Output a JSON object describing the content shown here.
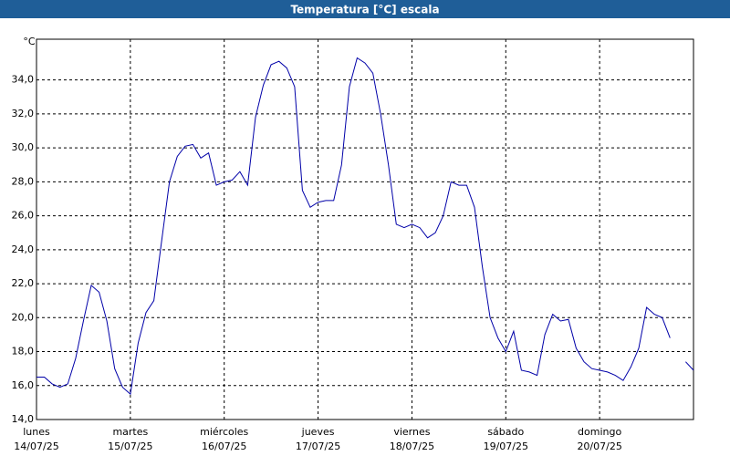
{
  "chart_data": {
    "type": "line",
    "title": "Temperatura [°C] escala",
    "ylabel": "°C",
    "x": [
      0,
      2,
      4,
      6,
      8,
      10,
      12,
      14,
      16,
      18,
      20,
      22,
      24,
      26,
      28,
      30,
      32,
      34,
      36,
      38,
      40,
      42,
      44,
      46,
      48,
      50,
      52,
      54,
      56,
      58,
      60,
      62,
      64,
      66,
      68,
      70,
      72,
      74,
      76,
      78,
      80,
      82,
      84,
      86,
      88,
      90,
      92,
      94,
      96,
      98,
      100,
      102,
      104,
      106,
      108,
      110,
      112,
      114,
      116,
      118,
      120,
      122,
      124,
      126,
      128,
      130,
      132,
      134,
      136,
      138,
      140,
      142,
      144,
      146,
      148,
      150,
      152,
      154,
      156,
      158,
      160,
      162,
      164,
      166,
      168
    ],
    "series": [
      {
        "color": "#0000a8",
        "values": [
          16.5,
          16.5,
          16.1,
          15.9,
          16.1,
          17.6,
          19.8,
          21.9,
          21.5,
          19.8,
          17.0,
          15.9,
          15.5,
          18.5,
          20.3,
          21.0,
          24.5,
          28.0,
          29.5,
          30.1,
          30.2,
          29.4,
          29.7,
          27.8,
          28.0,
          28.1,
          28.6,
          27.8,
          31.8,
          33.7,
          34.9,
          35.1,
          34.7,
          33.6,
          27.5,
          26.5,
          26.8,
          26.9,
          26.9,
          29.0,
          33.6,
          35.3,
          35.0,
          34.4,
          32.0,
          29.0,
          25.5,
          25.3,
          25.5,
          25.3,
          24.7,
          25.0,
          26.0,
          28.0,
          27.8,
          27.8,
          26.5,
          23.0,
          20.0,
          18.8,
          18.0,
          19.2,
          16.9,
          16.8,
          16.6,
          19.0,
          20.2,
          19.8,
          19.9,
          18.2,
          17.4,
          17.0,
          16.9,
          16.8,
          16.6,
          16.3,
          17.1,
          18.2,
          20.6,
          20.2,
          20.0,
          18.8,
          null,
          17.4,
          16.9
        ]
      }
    ],
    "xlim": [
      0,
      168
    ],
    "xticks": [
      {
        "value": 0,
        "label": "lunes"
      },
      {
        "value": 24,
        "label": "martes"
      },
      {
        "value": 48,
        "label": "miércoles"
      },
      {
        "value": 72,
        "label": "jueves"
      },
      {
        "value": 96,
        "label": "viernes"
      },
      {
        "value": 120,
        "label": "sábado"
      },
      {
        "value": 144,
        "label": "domingo"
      }
    ],
    "xtick_dates": [
      "14/07/25",
      "15/07/25",
      "16/07/25",
      "17/07/25",
      "18/07/25",
      "19/07/25",
      "20/07/25"
    ],
    "ylim": [
      14,
      36.4
    ],
    "yticks": [
      {
        "value": 14,
        "label": "14,0"
      },
      {
        "value": 16,
        "label": "16,0"
      },
      {
        "value": 18,
        "label": "18,0"
      },
      {
        "value": 20,
        "label": "20,0"
      },
      {
        "value": 22,
        "label": "22,0"
      },
      {
        "value": 24,
        "label": "24,0"
      },
      {
        "value": 26,
        "label": "26,0"
      },
      {
        "value": 28,
        "label": "28,0"
      },
      {
        "value": 30,
        "label": "30,0"
      },
      {
        "value": 32,
        "label": "32,0"
      },
      {
        "value": 34,
        "label": "34,0"
      }
    ],
    "grid": true
  }
}
